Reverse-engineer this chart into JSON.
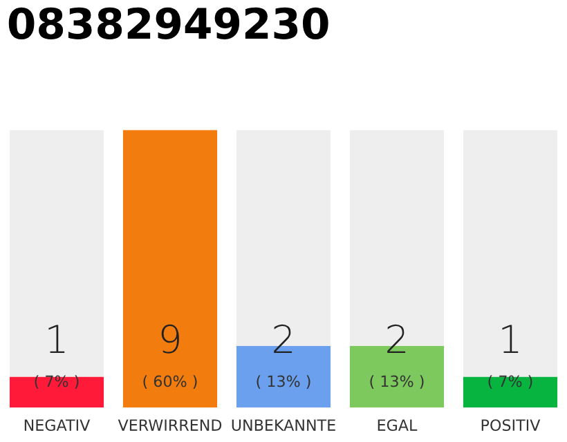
{
  "chart_data": {
    "type": "bar",
    "title": "08382949230",
    "categories": [
      "NEGATIV",
      "VERWIRREND",
      "UNBEKANNTE",
      "EGAL",
      "POSITIV"
    ],
    "stacked": true,
    "series": [
      {
        "colors": [
          "#ff1a3a",
          "#f27c0e",
          "#6aa0ee",
          "#7dc95e",
          "#08b440"
        ],
        "values": [
          1,
          9,
          2,
          2,
          1
        ],
        "value_labels": [
          "1",
          "9",
          "2",
          "2",
          "1"
        ]
      },
      {
        "color": "#eeeeee",
        "values": [
          8,
          0,
          7,
          7,
          8
        ]
      }
    ],
    "annotations": [
      "( 7% )",
      "( 60% )",
      "( 13% )",
      "( 13% )",
      "( 7% )"
    ],
    "grid": false,
    "legend": false
  }
}
